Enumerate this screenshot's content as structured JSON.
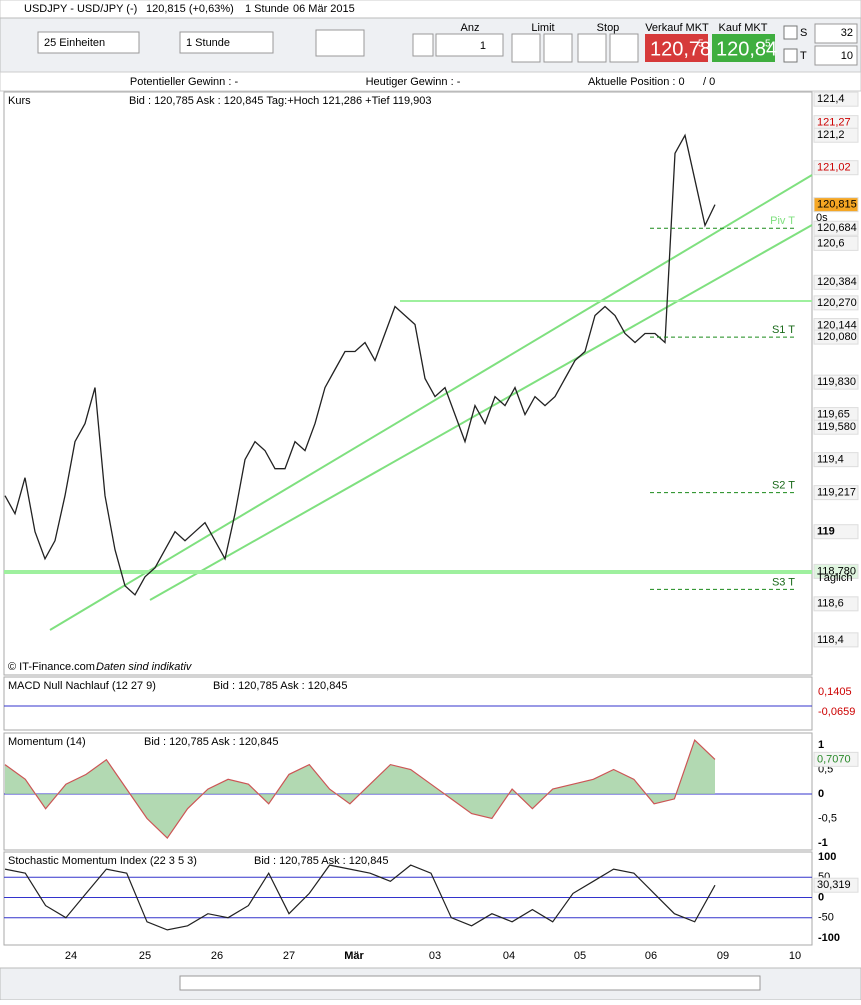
{
  "header": {
    "title": "USDJPY - USD/JPY (-)",
    "quote": "120,815 (+0,63%)",
    "interval": "1 Stunde",
    "date": "06 Mär 2015"
  },
  "toolbar": {
    "units": "25 Einheiten",
    "period": "1 Stunde",
    "qty_label": "Anz",
    "qty": "1",
    "limit": "Limit",
    "stop": "Stop",
    "sell_label": "Verkauf MKT",
    "sell_big": "120,78",
    "sell_small": "5",
    "buy_label": "Kauf MKT",
    "buy_big": "120,84",
    "buy_small": "5",
    "s_label": "S",
    "s_value": "32",
    "t_label": "T",
    "t_value": "10"
  },
  "info": {
    "potential": "Potentieller Gewinn : -",
    "today": "Heutiger Gewinn : -",
    "position": "Aktuelle Position : 0",
    "position_total": "/ 0"
  },
  "price_panel": {
    "name": "Kurs",
    "quote": "Bid : 120,785 Ask : 120,845 Tag:+Hoch 121,286 +Tief 119,903",
    "credit": "© IT-Finance.com",
    "note": "Daten sind indikativ",
    "ylim": [
      118.205,
      121.44
    ],
    "closes": [
      119.2,
      119.1,
      119.3,
      119.0,
      118.85,
      118.95,
      119.2,
      119.5,
      119.6,
      119.8,
      119.2,
      118.9,
      118.7,
      118.65,
      118.75,
      118.8,
      118.9,
      119.0,
      118.95,
      119.0,
      119.05,
      118.95,
      118.85,
      119.1,
      119.4,
      119.5,
      119.45,
      119.35,
      119.35,
      119.5,
      119.45,
      119.6,
      119.8,
      119.9,
      120.0,
      120.0,
      120.05,
      119.95,
      120.1,
      120.25,
      120.2,
      120.15,
      119.85,
      119.75,
      119.8,
      119.65,
      119.5,
      119.7,
      119.6,
      119.75,
      119.7,
      119.8,
      119.65,
      119.75,
      119.7,
      119.75,
      119.85,
      119.95,
      120.0,
      120.2,
      120.25,
      120.2,
      120.1,
      120.05,
      120.1,
      120.1,
      120.05,
      121.1,
      121.2,
      120.95,
      120.7,
      120.815
    ],
    "axis_labels": [
      {
        "value": 121.4,
        "label": "121,4"
      },
      {
        "value": 121.27,
        "label": "121,27"
      },
      {
        "value": 121.2,
        "label": "121,2"
      },
      {
        "value": 121.02,
        "label": "121,02"
      },
      {
        "value": 120.815,
        "label": "120,815"
      },
      {
        "value": 120.684,
        "label": "120,684"
      },
      {
        "value": 120.6,
        "label": "120,6"
      },
      {
        "value": 120.384,
        "label": "120,384"
      },
      {
        "value": 120.27,
        "label": "120,270"
      },
      {
        "value": 120.144,
        "label": "120,144"
      },
      {
        "value": 120.08,
        "label": "120,080"
      },
      {
        "value": 119.83,
        "label": "119,830"
      },
      {
        "value": 119.65,
        "label": "119,65"
      },
      {
        "value": 119.58,
        "label": "119,580"
      },
      {
        "value": 119.4,
        "label": "119,4"
      },
      {
        "value": 119.217,
        "label": "119,217"
      },
      {
        "value": 119,
        "label": "119"
      },
      {
        "value": 118.78,
        "label": "118,780"
      },
      {
        "value": 118.6,
        "label": "118,6"
      },
      {
        "value": 118.4,
        "label": "118,4"
      }
    ],
    "timer": "0s",
    "daily": "Täglich",
    "levels": [
      {
        "label": "Piv T",
        "value": 120.684
      },
      {
        "label": "S1 T",
        "value": 120.08
      },
      {
        "label": "S2 T",
        "value": 119.217
      },
      {
        "label": "S3 T",
        "value": 118.68
      }
    ]
  },
  "macd_panel": {
    "name": "MACD Null Nachlauf (12 27 9)",
    "quote": "Bid : 120,785 Ask : 120,845",
    "labels": [
      "0,1405",
      "-0,0659"
    ]
  },
  "momentum_panel": {
    "name": "Momentum (14)",
    "quote": "Bid : 120,785 Ask : 120,845",
    "ylim": [
      -1.143,
      1.245
    ],
    "yticks": [
      1,
      {
        "value": 0.5,
        "label": "0,5"
      },
      0,
      {
        "value": -0.5,
        "label": "-0,5"
      },
      -1
    ],
    "current": {
      "value": 0.707,
      "label": "0,7070"
    },
    "values": [
      0.6,
      0.3,
      -0.3,
      0.2,
      0.4,
      0.7,
      0.1,
      -0.5,
      -0.9,
      -0.3,
      0.1,
      0.3,
      0.2,
      -0.2,
      0.4,
      0.6,
      0.1,
      -0.2,
      0.2,
      0.6,
      0.5,
      0.2,
      -0.1,
      -0.4,
      -0.5,
      0.1,
      -0.3,
      0.1,
      0.2,
      0.3,
      0.5,
      0.3,
      -0.2,
      -0.1,
      1.1,
      0.707
    ]
  },
  "stochastic_panel": {
    "name": "Stochastic Momentum Index (22 3 5 3)",
    "quote": "Bid : 120,785 Ask : 120,845",
    "ylim": [
      -117.3,
      112.3
    ],
    "yticks": [
      100,
      50,
      0,
      -50,
      -100
    ],
    "current": {
      "value": 30.319,
      "label": "30,319"
    },
    "values": [
      70,
      60,
      -20,
      -50,
      10,
      70,
      60,
      -60,
      -80,
      -70,
      -40,
      -50,
      -20,
      60,
      -40,
      10,
      80,
      70,
      60,
      40,
      80,
      60,
      -50,
      -70,
      -40,
      -60,
      -30,
      -60,
      10,
      40,
      70,
      60,
      10,
      -40,
      -60,
      30.319
    ]
  },
  "x_axis": {
    "labels": [
      "24",
      "25",
      "26",
      "27",
      "Mär",
      "03",
      "04",
      "05",
      "06",
      "09",
      "10"
    ]
  }
}
